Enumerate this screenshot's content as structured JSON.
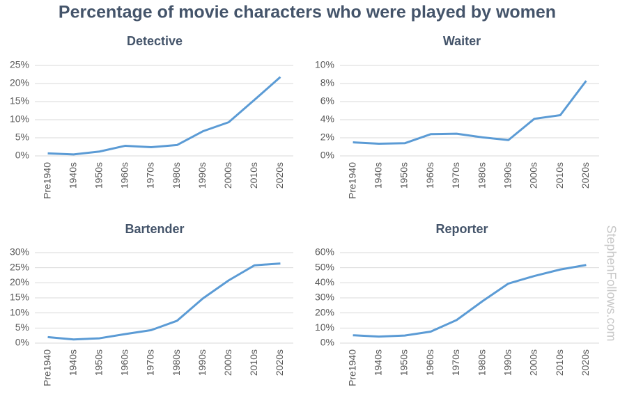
{
  "title": "Percentage of movie characters who were played by women",
  "watermark": "StephenFollows.com",
  "chart_data": [
    {
      "type": "line",
      "title": "Detective",
      "categories": [
        "Pre1940",
        "1940s",
        "1950s",
        "1960s",
        "1970s",
        "1980s",
        "1990s",
        "2000s",
        "2010s",
        "2020s"
      ],
      "series": [
        {
          "name": "Detective",
          "color": "#5b9bd5",
          "values": [
            0.7,
            0.4,
            1.2,
            2.8,
            2.4,
            3.0,
            6.8,
            9.3,
            15.5,
            21.8
          ]
        }
      ],
      "ylim": [
        0,
        25
      ],
      "yticks": [
        {
          "value": 0,
          "label": "0%"
        },
        {
          "value": 5,
          "label": "5%"
        },
        {
          "value": 10,
          "label": "10%"
        },
        {
          "value": 15,
          "label": "15%"
        },
        {
          "value": 20,
          "label": "20%"
        },
        {
          "value": 25,
          "label": "25%"
        }
      ],
      "grid": true
    },
    {
      "type": "line",
      "title": "Waiter",
      "categories": [
        "Pre1940",
        "1940s",
        "1950s",
        "1960s",
        "1970s",
        "1980s",
        "1990s",
        "2000s",
        "2010s",
        "2020s"
      ],
      "series": [
        {
          "name": "Waiter",
          "color": "#5b9bd5",
          "values": [
            1.5,
            1.35,
            1.4,
            2.4,
            2.45,
            2.05,
            1.75,
            4.1,
            4.5,
            8.3
          ]
        }
      ],
      "ylim": [
        0,
        10
      ],
      "yticks": [
        {
          "value": 0,
          "label": "0%"
        },
        {
          "value": 2,
          "label": "2%"
        },
        {
          "value": 4,
          "label": "4%"
        },
        {
          "value": 6,
          "label": "6%"
        },
        {
          "value": 8,
          "label": "8%"
        },
        {
          "value": 10,
          "label": "10%"
        }
      ],
      "grid": true
    },
    {
      "type": "line",
      "title": "Bartender",
      "categories": [
        "Pre1940",
        "1940s",
        "1950s",
        "1960s",
        "1970s",
        "1980s",
        "1990s",
        "2000s",
        "2010s",
        "2020s"
      ],
      "series": [
        {
          "name": "Bartender",
          "color": "#5b9bd5",
          "values": [
            2.0,
            1.2,
            1.6,
            3.0,
            4.3,
            7.4,
            14.8,
            20.8,
            25.8,
            26.4
          ]
        }
      ],
      "ylim": [
        0,
        30
      ],
      "yticks": [
        {
          "value": 0,
          "label": "0%"
        },
        {
          "value": 5,
          "label": "5%"
        },
        {
          "value": 10,
          "label": "10%"
        },
        {
          "value": 15,
          "label": "15%"
        },
        {
          "value": 20,
          "label": "20%"
        },
        {
          "value": 25,
          "label": "25%"
        },
        {
          "value": 30,
          "label": "30%"
        }
      ],
      "grid": true
    },
    {
      "type": "line",
      "title": "Reporter",
      "categories": [
        "Pre1940",
        "1940s",
        "1950s",
        "1960s",
        "1970s",
        "1980s",
        "1990s",
        "2000s",
        "2010s",
        "2020s"
      ],
      "series": [
        {
          "name": "Reporter",
          "color": "#5b9bd5",
          "values": [
            5.2,
            4.3,
            5.0,
            7.6,
            15.3,
            27.8,
            39.5,
            44.5,
            48.8,
            51.8
          ]
        }
      ],
      "ylim": [
        0,
        60
      ],
      "yticks": [
        {
          "value": 0,
          "label": "0%"
        },
        {
          "value": 10,
          "label": "10%"
        },
        {
          "value": 20,
          "label": "20%"
        },
        {
          "value": 30,
          "label": "30%"
        },
        {
          "value": 40,
          "label": "40%"
        },
        {
          "value": 50,
          "label": "50%"
        },
        {
          "value": 60,
          "label": "60%"
        }
      ],
      "grid": true
    }
  ]
}
